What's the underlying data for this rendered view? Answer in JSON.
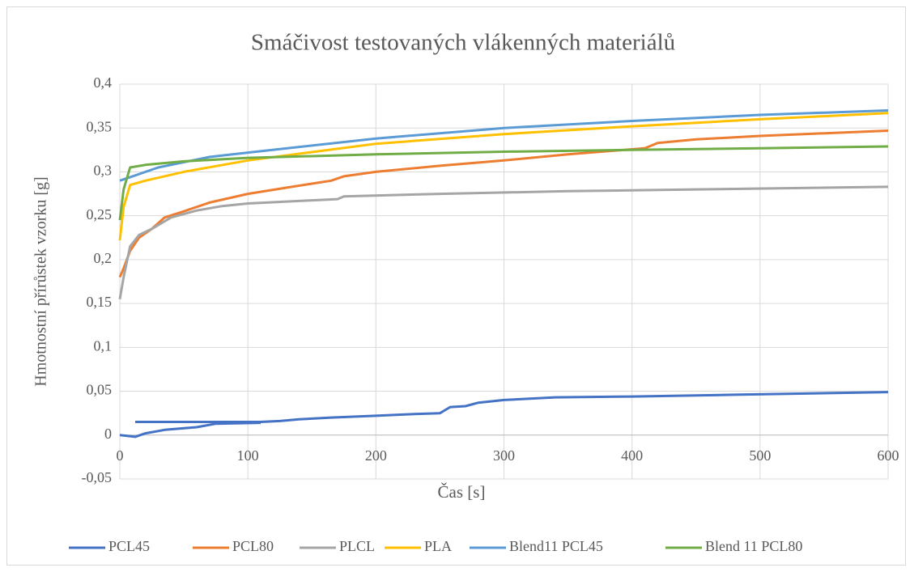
{
  "chart_data": {
    "type": "line",
    "title": "Smáčivost testovaných vlákenných materiálů",
    "xlabel": "Čas [s]",
    "ylabel": "Hmotnostní přírůstek vzorku [g]",
    "xlim": [
      0,
      600
    ],
    "xticks": [
      0,
      100,
      200,
      300,
      400,
      500,
      600
    ],
    "ylim": [
      -0.05,
      0.4
    ],
    "yticks": [
      {
        "value": 0.4,
        "label": "0,4"
      },
      {
        "value": 0.35,
        "label": "0,35"
      },
      {
        "value": 0.3,
        "label": "0,3"
      },
      {
        "value": 0.25,
        "label": "0,25"
      },
      {
        "value": 0.2,
        "label": "0,2"
      },
      {
        "value": 0.15,
        "label": "0,15"
      },
      {
        "value": 0.1,
        "label": "0,1"
      },
      {
        "value": 0.05,
        "label": "0,05"
      },
      {
        "value": 0,
        "label": "0"
      },
      {
        "value": -0.05,
        "label": "-0,05"
      }
    ],
    "grid": true,
    "legend": "bottom",
    "series": [
      {
        "name": "PCL45",
        "color": "#4472c4",
        "x": [
          0,
          12,
          20,
          35,
          60,
          75,
          110,
          null,
          12,
          110,
          125,
          140,
          165,
          200,
          230,
          250,
          258,
          270,
          280,
          300,
          340,
          400,
          480,
          600
        ],
        "values": [
          0,
          -0.002,
          0.002,
          0.006,
          0.009,
          0.013,
          0.014,
          null,
          0.015,
          0.015,
          0.016,
          0.018,
          0.02,
          0.022,
          0.024,
          0.025,
          0.032,
          0.033,
          0.037,
          0.04,
          0.043,
          0.044,
          0.046,
          0.049
        ]
      },
      {
        "name": "PCL80",
        "color": "#ed7d31",
        "x": [
          0,
          3,
          8,
          15,
          25,
          35,
          50,
          70,
          100,
          130,
          165,
          175,
          200,
          250,
          300,
          350,
          410,
          420,
          450,
          500,
          600
        ],
        "values": [
          0.18,
          0.19,
          0.21,
          0.225,
          0.235,
          0.248,
          0.255,
          0.265,
          0.275,
          0.282,
          0.29,
          0.295,
          0.3,
          0.307,
          0.313,
          0.32,
          0.327,
          0.333,
          0.337,
          0.341,
          0.347
        ]
      },
      {
        "name": "PLCL",
        "color": "#a5a5a5",
        "x": [
          0,
          3,
          8,
          15,
          25,
          40,
          60,
          80,
          100,
          170,
          175,
          250,
          350,
          450,
          600
        ],
        "values": [
          0.155,
          0.18,
          0.215,
          0.228,
          0.235,
          0.248,
          0.256,
          0.261,
          0.264,
          0.269,
          0.272,
          0.275,
          0.278,
          0.28,
          0.283
        ]
      },
      {
        "name": "PLA",
        "color": "#ffc000",
        "x": [
          0,
          3,
          8,
          20,
          50,
          100,
          200,
          300,
          400,
          500,
          600
        ],
        "values": [
          0.222,
          0.26,
          0.285,
          0.29,
          0.3,
          0.313,
          0.332,
          0.343,
          0.352,
          0.36,
          0.367
        ]
      },
      {
        "name": "Blend11 PCL45",
        "color": "#5b9bd5",
        "x": [
          0,
          10,
          30,
          70,
          100,
          200,
          300,
          400,
          500,
          600
        ],
        "values": [
          0.29,
          0.295,
          0.305,
          0.317,
          0.322,
          0.338,
          0.35,
          0.358,
          0.365,
          0.37
        ]
      },
      {
        "name": "Blend 11 PCL80",
        "color": "#70ad47",
        "x": [
          0,
          3,
          8,
          20,
          50,
          100,
          200,
          300,
          400,
          500,
          600
        ],
        "values": [
          0.245,
          0.28,
          0.305,
          0.308,
          0.312,
          0.316,
          0.32,
          0.323,
          0.325,
          0.327,
          0.329
        ]
      }
    ]
  }
}
